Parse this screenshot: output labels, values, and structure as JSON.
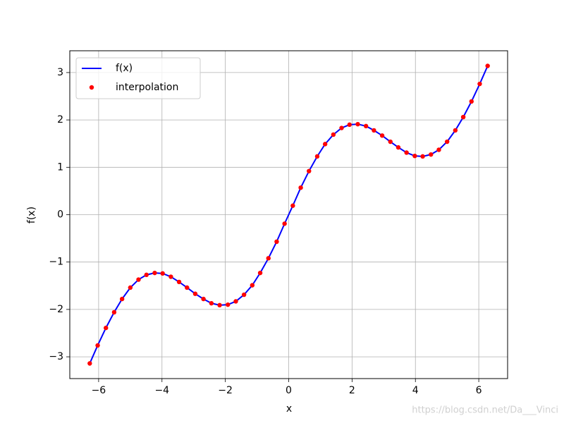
{
  "chart_data": {
    "type": "line",
    "xlabel": "x",
    "ylabel": "f(x)",
    "x": [
      -6.28,
      -6.03,
      -5.77,
      -5.51,
      -5.26,
      -5,
      -4.74,
      -4.49,
      -4.23,
      -3.98,
      -3.72,
      -3.46,
      -3.21,
      -2.95,
      -2.69,
      -2.44,
      -2.18,
      -1.92,
      -1.67,
      -1.41,
      -1.15,
      -0.9,
      -0.64,
      -0.38,
      -0.13,
      0.13,
      0.38,
      0.64,
      0.9,
      1.15,
      1.41,
      1.67,
      1.92,
      2.18,
      2.44,
      2.69,
      2.95,
      3.21,
      3.46,
      3.72,
      3.98,
      4.23,
      4.49,
      4.74,
      5,
      5.26,
      5.51,
      5.77,
      6.03,
      6.28
    ],
    "series": [
      {
        "name": "f(x)",
        "color": "#0000ff",
        "kind": "line",
        "values": [
          -3.14,
          -2.76,
          -2.39,
          -2.06,
          -1.78,
          -1.54,
          -1.37,
          -1.27,
          -1.23,
          -1.24,
          -1.31,
          -1.42,
          -1.54,
          -1.67,
          -1.78,
          -1.87,
          -1.91,
          -1.9,
          -1.83,
          -1.69,
          -1.49,
          -1.23,
          -0.92,
          -0.57,
          -0.19,
          0.19,
          0.57,
          0.92,
          1.23,
          1.49,
          1.69,
          1.83,
          1.9,
          1.91,
          1.87,
          1.78,
          1.67,
          1.54,
          1.42,
          1.31,
          1.24,
          1.23,
          1.27,
          1.37,
          1.54,
          1.78,
          2.06,
          2.39,
          2.76,
          3.14
        ]
      },
      {
        "name": "interpolation",
        "color": "#ff0000",
        "kind": "scatter",
        "values": [
          -3.14,
          -2.76,
          -2.39,
          -2.06,
          -1.78,
          -1.54,
          -1.37,
          -1.27,
          -1.23,
          -1.24,
          -1.31,
          -1.42,
          -1.54,
          -1.67,
          -1.78,
          -1.87,
          -1.91,
          -1.9,
          -1.83,
          -1.69,
          -1.49,
          -1.23,
          -0.92,
          -0.57,
          -0.19,
          0.19,
          0.57,
          0.92,
          1.23,
          1.49,
          1.69,
          1.83,
          1.9,
          1.91,
          1.87,
          1.78,
          1.67,
          1.54,
          1.42,
          1.31,
          1.24,
          1.23,
          1.27,
          1.37,
          1.54,
          1.78,
          2.06,
          2.39,
          2.76,
          3.14
        ]
      }
    ],
    "xlim": [
      -6.91,
      6.91
    ],
    "ylim": [
      -3.46,
      3.46
    ],
    "xticks": [
      {
        "value": -6,
        "label": "−6"
      },
      {
        "value": -4,
        "label": "−4"
      },
      {
        "value": -2,
        "label": "−2"
      },
      0,
      2,
      4,
      6
    ],
    "yticks": [
      {
        "value": -3,
        "label": "−3"
      },
      {
        "value": -2,
        "label": "−2"
      },
      {
        "value": -1,
        "label": "−1"
      },
      0,
      1,
      2,
      3
    ],
    "grid": true,
    "legend": "upper left",
    "watermark": "https://blog.csdn.net/Da___Vinci"
  }
}
